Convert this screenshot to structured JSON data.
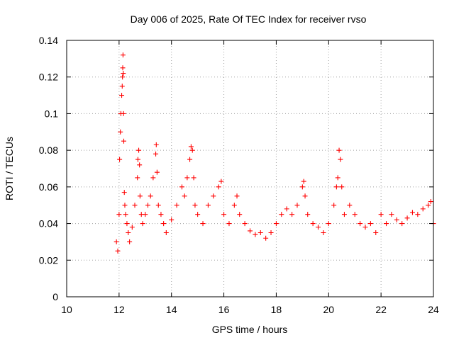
{
  "chart_data": {
    "type": "scatter",
    "title": "Day 006 of 2025, Rate Of TEC Index for receiver rvso",
    "xlabel": "GPS time / hours",
    "ylabel": "ROTI / TECUs",
    "xlim": [
      10,
      24
    ],
    "ylim": [
      0,
      0.14
    ],
    "grid": true,
    "marker": "+",
    "color": "#ff0000",
    "x_ticks": [
      "10",
      "12",
      "14",
      "16",
      "18",
      "20",
      "22",
      "24"
    ],
    "y_ticks": [
      "0",
      "0.02",
      "0.04",
      "0.06",
      "0.08",
      "0.1",
      "0.12",
      "0.14"
    ],
    "series": [
      {
        "name": "ROTI",
        "x": [
          11.9,
          11.95,
          12.0,
          12.02,
          12.05,
          12.07,
          12.1,
          12.12,
          12.13,
          12.14,
          12.15,
          12.16,
          12.17,
          12.18,
          12.2,
          12.22,
          12.25,
          12.3,
          12.35,
          12.4,
          12.5,
          12.6,
          12.7,
          12.72,
          12.75,
          12.78,
          12.8,
          12.85,
          12.9,
          13.0,
          13.1,
          13.2,
          13.3,
          13.4,
          13.42,
          13.45,
          13.5,
          13.6,
          13.7,
          13.8,
          14.0,
          14.2,
          14.4,
          14.5,
          14.6,
          14.7,
          14.75,
          14.8,
          14.85,
          14.9,
          15.0,
          15.2,
          15.4,
          15.6,
          15.8,
          15.9,
          16.0,
          16.2,
          16.4,
          16.5,
          16.6,
          16.8,
          17.0,
          17.2,
          17.4,
          17.6,
          17.8,
          18.0,
          18.2,
          18.4,
          18.6,
          18.8,
          19.0,
          19.05,
          19.1,
          19.2,
          19.4,
          19.6,
          19.8,
          20.0,
          20.2,
          20.3,
          20.35,
          20.4,
          20.45,
          20.5,
          20.6,
          20.8,
          21.0,
          21.2,
          21.4,
          21.6,
          21.8,
          22.0,
          22.2,
          22.4,
          22.6,
          22.8,
          23.0,
          23.2,
          23.4,
          23.6,
          23.8,
          23.9,
          24.0
        ],
        "y": [
          0.03,
          0.025,
          0.045,
          0.075,
          0.09,
          0.1,
          0.11,
          0.115,
          0.12,
          0.125,
          0.132,
          0.122,
          0.1,
          0.085,
          0.057,
          0.05,
          0.045,
          0.04,
          0.035,
          0.03,
          0.038,
          0.05,
          0.065,
          0.075,
          0.08,
          0.072,
          0.055,
          0.045,
          0.04,
          0.045,
          0.05,
          0.055,
          0.065,
          0.078,
          0.083,
          0.068,
          0.05,
          0.045,
          0.04,
          0.035,
          0.042,
          0.05,
          0.06,
          0.055,
          0.065,
          0.075,
          0.082,
          0.08,
          0.065,
          0.05,
          0.045,
          0.04,
          0.05,
          0.055,
          0.06,
          0.063,
          0.045,
          0.04,
          0.05,
          0.055,
          0.045,
          0.04,
          0.036,
          0.034,
          0.035,
          0.032,
          0.035,
          0.04,
          0.045,
          0.048,
          0.045,
          0.05,
          0.06,
          0.063,
          0.055,
          0.045,
          0.04,
          0.038,
          0.035,
          0.04,
          0.05,
          0.06,
          0.065,
          0.08,
          0.075,
          0.06,
          0.045,
          0.05,
          0.045,
          0.04,
          0.038,
          0.04,
          0.035,
          0.045,
          0.04,
          0.045,
          0.042,
          0.04,
          0.043,
          0.046,
          0.045,
          0.048,
          0.05,
          0.052,
          0.04
        ]
      }
    ]
  }
}
